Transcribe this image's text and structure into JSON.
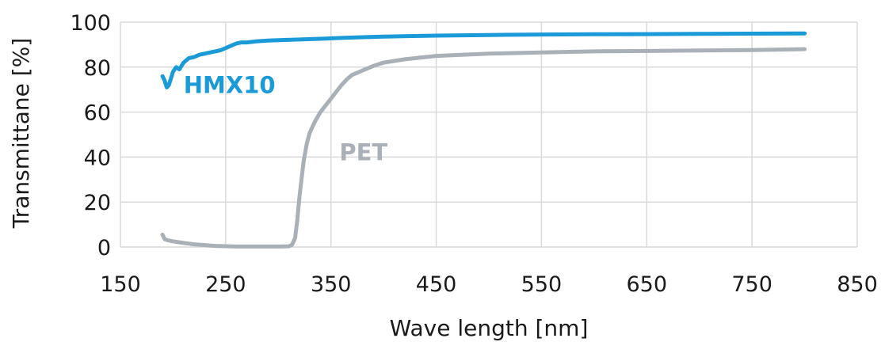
{
  "chart_data": {
    "type": "line",
    "xlabel": "Wave length [nm]",
    "ylabel": "Transmittane [%]",
    "xlim": [
      150,
      850
    ],
    "ylim": [
      0,
      100
    ],
    "x_ticks": [
      150,
      250,
      350,
      450,
      550,
      650,
      750,
      850
    ],
    "y_ticks": [
      0,
      20,
      40,
      60,
      80,
      100
    ],
    "grid": true,
    "legend": "none",
    "series": [
      {
        "name": "HMX10",
        "color": "#1a9ad7",
        "label_pos": [
          210,
          72
        ],
        "x": [
          190,
          192,
          194,
          196,
          198,
          200,
          203,
          206,
          210,
          215,
          220,
          225,
          230,
          235,
          240,
          245,
          250,
          255,
          260,
          265,
          270,
          280,
          290,
          300,
          320,
          340,
          360,
          380,
          400,
          450,
          500,
          550,
          600,
          650,
          700,
          750,
          800
        ],
        "y": [
          76,
          74,
          71,
          72,
          75,
          78,
          80,
          79,
          82,
          84,
          84.5,
          85.5,
          86,
          86.5,
          87,
          87.5,
          88.5,
          89.5,
          90.5,
          91,
          91,
          91.5,
          91.8,
          92,
          92.3,
          92.6,
          93,
          93.3,
          93.6,
          94,
          94.3,
          94.5,
          94.6,
          94.7,
          94.8,
          94.9,
          95
        ]
      },
      {
        "name": "PET",
        "color": "#a9b0b7",
        "label_pos": [
          358,
          42
        ],
        "x": [
          190,
          192,
          195,
          200,
          210,
          220,
          240,
          260,
          280,
          300,
          310,
          313,
          316,
          318,
          320,
          322,
          324,
          327,
          330,
          335,
          340,
          345,
          350,
          355,
          360,
          365,
          370,
          375,
          380,
          390,
          400,
          420,
          450,
          500,
          550,
          600,
          650,
          700,
          750,
          800
        ],
        "y": [
          5.5,
          3.5,
          3,
          2.5,
          1.8,
          1.2,
          0.5,
          0.2,
          0.2,
          0.2,
          0.3,
          1,
          4,
          12,
          22,
          30,
          38,
          46,
          51,
          56,
          60,
          63,
          66,
          69,
          72,
          74.5,
          76.5,
          77.5,
          78.5,
          80.5,
          82,
          83.5,
          85,
          86,
          86.5,
          87,
          87.2,
          87.4,
          87.6,
          88
        ]
      }
    ]
  }
}
